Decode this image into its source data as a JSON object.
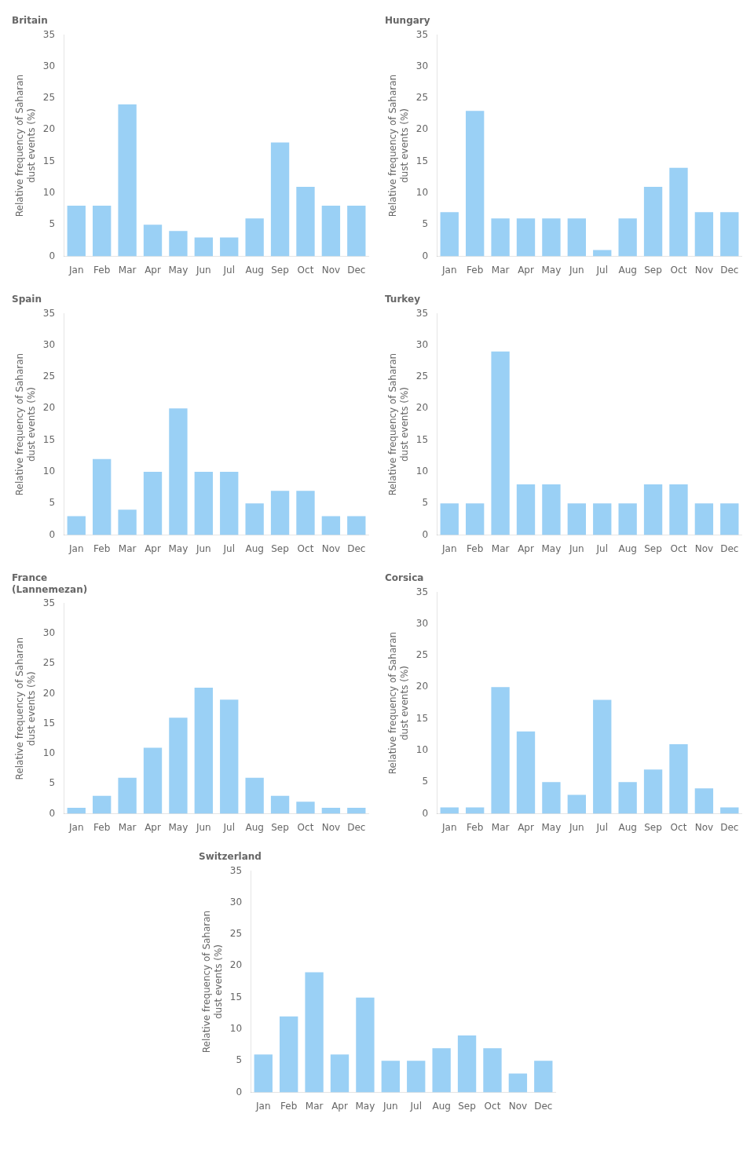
{
  "chart_data": [
    {
      "type": "bar",
      "title": "Britain",
      "categories": [
        "Jan",
        "Feb",
        "Mar",
        "Apr",
        "May",
        "Jun",
        "Jul",
        "Aug",
        "Sep",
        "Oct",
        "Nov",
        "Dec"
      ],
      "values": [
        8,
        8,
        24,
        5,
        4,
        3,
        3,
        6,
        18,
        11,
        8,
        8
      ],
      "ylabel": "Relative frequency of Saharan\ndust events (%)",
      "ylim": [
        0,
        35
      ],
      "yticks": [
        0,
        5,
        10,
        15,
        20,
        25,
        30,
        35
      ],
      "grid": false
    },
    {
      "type": "bar",
      "title": "Hungary",
      "categories": [
        "Jan",
        "Feb",
        "Mar",
        "Apr",
        "May",
        "Jun",
        "Jul",
        "Aug",
        "Sep",
        "Oct",
        "Nov",
        "Dec"
      ],
      "values": [
        7,
        23,
        6,
        6,
        6,
        6,
        1,
        6,
        11,
        14,
        7,
        7
      ],
      "ylabel": "Relative frequency of Saharan\ndust events (%)",
      "ylim": [
        0,
        35
      ],
      "yticks": [
        0,
        5,
        10,
        15,
        20,
        25,
        30,
        35
      ],
      "grid": false
    },
    {
      "type": "bar",
      "title": "Spain",
      "categories": [
        "Jan",
        "Feb",
        "Mar",
        "Apr",
        "May",
        "Jun",
        "Jul",
        "Aug",
        "Sep",
        "Oct",
        "Nov",
        "Dec"
      ],
      "values": [
        3,
        12,
        4,
        10,
        20,
        10,
        10,
        5,
        7,
        7,
        3,
        3
      ],
      "ylabel": "Relative frequency of Saharan\ndust events (%)",
      "ylim": [
        0,
        35
      ],
      "yticks": [
        0,
        5,
        10,
        15,
        20,
        25,
        30,
        35
      ],
      "grid": false
    },
    {
      "type": "bar",
      "title": "Turkey",
      "categories": [
        "Jan",
        "Feb",
        "Mar",
        "Apr",
        "May",
        "Jun",
        "Jul",
        "Aug",
        "Sep",
        "Oct",
        "Nov",
        "Dec"
      ],
      "values": [
        5,
        5,
        29,
        8,
        8,
        5,
        5,
        5,
        8,
        8,
        5,
        5
      ],
      "ylabel": "Relative frequency of Saharan\ndust events (%)",
      "ylim": [
        0,
        35
      ],
      "yticks": [
        0,
        5,
        10,
        15,
        20,
        25,
        30,
        35
      ],
      "grid": false
    },
    {
      "type": "bar",
      "title": "France\n(Lannemezan)",
      "categories": [
        "Jan",
        "Feb",
        "Mar",
        "Apr",
        "May",
        "Jun",
        "Jul",
        "Aug",
        "Sep",
        "Oct",
        "Nov",
        "Dec"
      ],
      "values": [
        1,
        3,
        6,
        11,
        16,
        21,
        19,
        6,
        3,
        2,
        1,
        1
      ],
      "ylabel": "Relative frequency of Saharan\ndust events (%)",
      "ylim": [
        0,
        35
      ],
      "yticks": [
        0,
        5,
        10,
        15,
        20,
        25,
        30,
        35
      ],
      "grid": false
    },
    {
      "type": "bar",
      "title": "Corsica",
      "categories": [
        "Jan",
        "Feb",
        "Mar",
        "Apr",
        "May",
        "Jun",
        "Jul",
        "Aug",
        "Sep",
        "Oct",
        "Nov",
        "Dec"
      ],
      "values": [
        1,
        1,
        20,
        13,
        5,
        3,
        18,
        5,
        7,
        11,
        4,
        1
      ],
      "ylabel": "Relative frequency of Saharan\ndust events (%)",
      "ylim": [
        0,
        35
      ],
      "yticks": [
        0,
        5,
        10,
        15,
        20,
        25,
        30,
        35
      ],
      "grid": false
    },
    {
      "type": "bar",
      "title": "Switzerland",
      "categories": [
        "Jan",
        "Feb",
        "Mar",
        "Apr",
        "May",
        "Jun",
        "Jul",
        "Aug",
        "Sep",
        "Oct",
        "Nov",
        "Dec"
      ],
      "values": [
        6,
        12,
        19,
        6,
        15,
        5,
        5,
        7,
        9,
        7,
        3,
        5
      ],
      "ylabel": "Relative frequency of Saharan\ndust events (%)",
      "ylim": [
        0,
        35
      ],
      "yticks": [
        0,
        5,
        10,
        15,
        20,
        25,
        30,
        35
      ],
      "grid": false
    }
  ]
}
